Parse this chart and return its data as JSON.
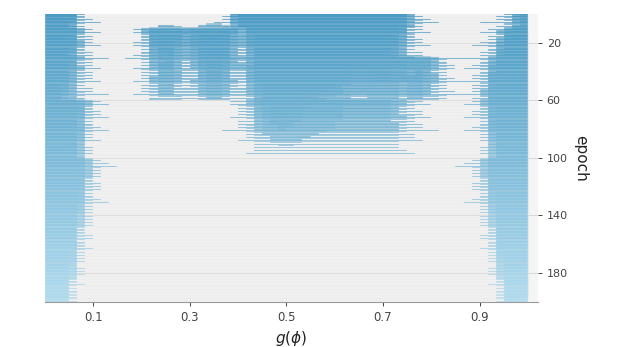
{
  "xlabel": "$g(\\phi)$",
  "ylabel": "epoch",
  "xlim": [
    0.0,
    1.02
  ],
  "n_epochs": 200,
  "n_bins": 60,
  "yticks": [
    20,
    60,
    100,
    140,
    180
  ],
  "xticks": [
    0.1,
    0.3,
    0.5,
    0.7,
    0.9
  ],
  "background_color": "#f0f0f0",
  "fill_color_early": "#2b8cbe",
  "fill_color_late": "#a6d9f0",
  "line_color": "#e8e8e8",
  "fig_bg": "#ffffff",
  "axes_bg": "#f5f5f5"
}
